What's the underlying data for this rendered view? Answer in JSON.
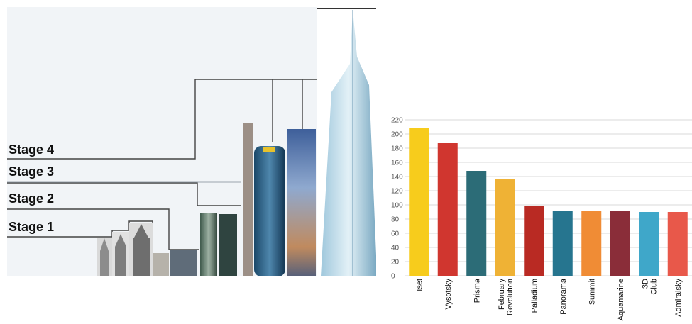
{
  "stages": {
    "labels": [
      "Stage 4",
      "Stage 3",
      "Stage 2",
      "Stage 1"
    ]
  },
  "chart_data": {
    "type": "bar",
    "categories": [
      "Iset",
      "Vysotsky",
      "Prisma",
      "February Revolution",
      "Palladium",
      "Panorama",
      "Summit",
      "Aquamarine",
      "3D Club",
      "Admiralsky"
    ],
    "values": [
      209,
      188,
      148,
      136,
      98,
      92,
      92,
      91,
      90,
      90
    ],
    "colors": [
      "#f7cc1c",
      "#d0362f",
      "#2c6c77",
      "#efb235",
      "#b92a23",
      "#26758f",
      "#f08c35",
      "#8a2d39",
      "#3fa7c9",
      "#e8584a"
    ],
    "yticks": [
      "0",
      "20",
      "40",
      "60",
      "80",
      "100",
      "120",
      "140",
      "160",
      "180",
      "200",
      "220"
    ],
    "ylim": [
      0,
      220
    ],
    "grid": true,
    "title": "",
    "xlabel": "",
    "ylabel": ""
  }
}
